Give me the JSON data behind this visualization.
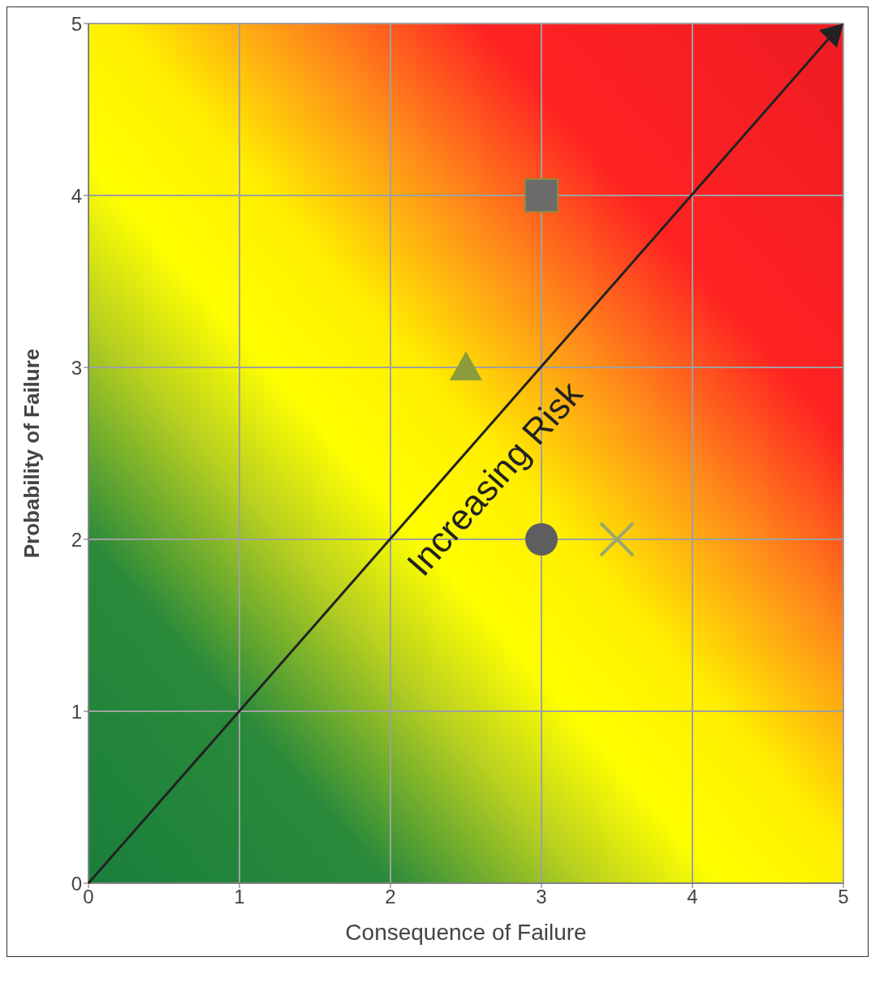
{
  "chart_data": {
    "type": "scatter",
    "xlabel": "Consequence of Failure",
    "ylabel": "Probability of Failure",
    "xlim": [
      0,
      5
    ],
    "ylim": [
      0,
      5
    ],
    "xticks": [
      0,
      1,
      2,
      3,
      4,
      5
    ],
    "yticks": [
      0,
      1,
      2,
      3,
      4,
      5
    ],
    "grid": true,
    "annotations": [
      "Increasing Risk"
    ],
    "series": [
      {
        "color": "#6b6b6b",
        "marker": "square",
        "x": [
          3
        ],
        "values": [
          4
        ]
      },
      {
        "color": "#5e5e60",
        "marker": "circle",
        "x": [
          3
        ],
        "values": [
          2
        ]
      },
      {
        "color": "#9aa86c",
        "marker": "cross",
        "x": [
          3.5
        ],
        "values": [
          2
        ]
      },
      {
        "color": "#8c9c3c",
        "marker": "triangle",
        "x": [
          2.5
        ],
        "values": [
          3
        ]
      }
    ]
  }
}
